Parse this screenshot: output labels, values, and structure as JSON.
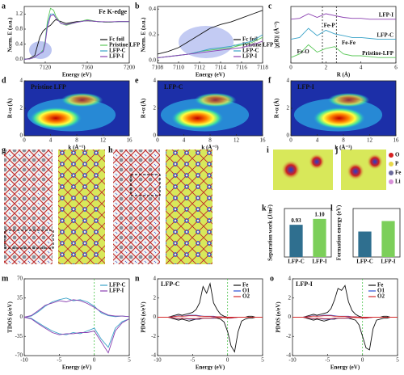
{
  "chart_data": [
    {
      "type": "line",
      "panel": "a",
      "title": "Fe K-edge",
      "title_corner": "upper right",
      "xlabel": "Energy (eV)",
      "ylabel": "Norm. E (a.u.)",
      "x": [
        7100,
        7105,
        7110,
        7112,
        7115,
        7118,
        7120,
        7122,
        7125,
        7128,
        7130,
        7135,
        7140,
        7150,
        7160,
        7170,
        7180,
        7190,
        7200
      ],
      "xlim": [
        7100,
        7200
      ],
      "xticks": [
        7120,
        7160,
        7200
      ],
      "ylim": [
        -0.1,
        1.4
      ],
      "yticks": [
        {
          "value": 0,
          "label": "0.0"
        },
        0.4,
        0.8,
        1.2
      ],
      "legend": "lower right",
      "series": [
        {
          "name": "Fc foil",
          "color": "#111111",
          "values": [
            0,
            0.02,
            0.1,
            0.3,
            0.6,
            0.75,
            0.8,
            0.85,
            0.9,
            1.0,
            1.05,
            1.0,
            0.95,
            1.0,
            1.02,
            1.0,
            0.98,
            1.0,
            1.0
          ]
        },
        {
          "name": "Pristine LFP",
          "color": "#5cc85a",
          "values": [
            0,
            0.01,
            0.05,
            0.1,
            0.15,
            0.25,
            0.5,
            1.0,
            1.35,
            1.3,
            1.15,
            0.95,
            0.9,
            0.98,
            1.05,
            1.0,
            0.98,
            1.0,
            1.0
          ]
        },
        {
          "name": "LFP-C",
          "color": "#3aa3c8",
          "values": [
            0,
            0.01,
            0.05,
            0.1,
            0.15,
            0.22,
            0.45,
            0.9,
            1.2,
            1.2,
            1.1,
            0.95,
            0.92,
            0.98,
            1.03,
            1.0,
            0.99,
            1.0,
            1.0
          ]
        },
        {
          "name": "LFP-I",
          "color": "#8a3fb0",
          "values": [
            0,
            0.01,
            0.05,
            0.1,
            0.15,
            0.2,
            0.42,
            0.85,
            1.15,
            1.18,
            1.1,
            0.95,
            0.92,
            0.98,
            1.03,
            1.0,
            0.99,
            1.0,
            1.0
          ]
        }
      ]
    },
    {
      "type": "line",
      "panel": "b",
      "xlabel": "Energy (eV)",
      "ylabel": "Norm. E (a.u.)",
      "x": [
        7108,
        7109,
        7110,
        7111,
        7112,
        7113,
        7114,
        7115,
        7116,
        7117,
        7118
      ],
      "xlim": [
        7108,
        7118
      ],
      "xticks": [
        7108,
        7110,
        7112,
        7114,
        7116,
        7118
      ],
      "ylim": [
        -0.02,
        0.42
      ],
      "yticks": [
        {
          "value": 0,
          "label": "0.0"
        },
        0.2,
        0.4
      ],
      "legend": "lower right",
      "series": [
        {
          "name": "Fc foil",
          "color": "#111111",
          "values": [
            0.05,
            0.07,
            0.1,
            0.15,
            0.2,
            0.25,
            0.28,
            0.3,
            0.33,
            0.36,
            0.39
          ]
        },
        {
          "name": "Pristine LFP",
          "color": "#5cc85a",
          "values": [
            0.02,
            0.03,
            0.04,
            0.05,
            0.07,
            0.08,
            0.09,
            0.1,
            0.12,
            0.14,
            0.18
          ]
        },
        {
          "name": "LFP-C",
          "color": "#3aa3c8",
          "values": [
            0.02,
            0.03,
            0.04,
            0.05,
            0.07,
            0.09,
            0.1,
            0.11,
            0.13,
            0.15,
            0.2
          ]
        },
        {
          "name": "LFP-I",
          "color": "#8a3fb0",
          "values": [
            0.02,
            0.03,
            0.04,
            0.05,
            0.06,
            0.07,
            0.08,
            0.09,
            0.1,
            0.12,
            0.15
          ]
        }
      ]
    },
    {
      "type": "line",
      "panel": "c",
      "xlabel": "R (Å)",
      "ylabel": "|χ(R)| (Å⁻³)",
      "x": [
        0,
        0.5,
        1,
        1.5,
        2,
        2.5,
        3,
        3.5,
        4,
        4.5,
        5,
        5.5,
        6
      ],
      "xlim": [
        0,
        6
      ],
      "xticks": [
        0,
        2,
        4,
        6
      ],
      "ylim": [
        0,
        3.1
      ],
      "legend": "inline",
      "vlines": [
        1.8,
        2.6
      ],
      "annotations": [
        {
          "text": "Fe-P",
          "x": 2.2,
          "y": 2.05
        },
        {
          "text": "Fe-O",
          "x": 0.7,
          "y": 0.6
        },
        {
          "text": "Fe-Fe",
          "x": 3.3,
          "y": 1.1
        }
      ],
      "series": [
        {
          "name": "LFP-I",
          "color": "#8a3fb0",
          "values": [
            2.4,
            2.45,
            2.7,
            2.5,
            2.7,
            2.6,
            2.5,
            2.45,
            2.45,
            2.4,
            2.4,
            2.4,
            2.4
          ]
        },
        {
          "name": "LFP-C",
          "color": "#3aa3c8",
          "values": [
            1.3,
            1.4,
            1.9,
            1.5,
            1.8,
            1.6,
            1.5,
            1.4,
            1.4,
            1.35,
            1.3,
            1.3,
            1.3
          ]
        },
        {
          "name": "Pristine-LFP",
          "color": "#5cc85a",
          "values": [
            0.3,
            0.5,
            1.0,
            0.6,
            0.8,
            0.9,
            0.5,
            0.4,
            0.4,
            0.35,
            0.3,
            0.3,
            0.3
          ]
        }
      ]
    },
    {
      "type": "bar",
      "panel": "k",
      "ylabel": "Separation work (J/m²)",
      "categories": [
        "LFP-C",
        "LFP-I"
      ],
      "values": [
        0.93,
        1.1
      ],
      "value_labels": [
        "0.93",
        "1.10"
      ],
      "colors": [
        "#2f6f8f",
        "#7ccf5a"
      ],
      "ylim": [
        0,
        1.4
      ]
    },
    {
      "type": "bar",
      "panel": "l",
      "ylabel": "Formation energy (eV)",
      "categories": [
        "LFP-C",
        "LFP-I"
      ],
      "values": [
        0.63,
        0.89
      ],
      "colors": [
        "#2f6f8f",
        "#7ccf5a"
      ],
      "ylim": [
        0,
        1.2
      ]
    },
    {
      "type": "line",
      "panel": "m",
      "xlabel": "Energy (eV)",
      "ylabel": "TDOS (e/eV)",
      "x": [
        -10,
        -9,
        -8,
        -7,
        -6,
        -5,
        -4,
        -3,
        -2,
        -1,
        0,
        1,
        2,
        3,
        4,
        5
      ],
      "xlim": [
        -10,
        5
      ],
      "xticks": [
        -10,
        -5,
        0,
        5
      ],
      "ylim": [
        -70,
        70
      ],
      "yticks": [
        -70,
        -35,
        0,
        35,
        70
      ],
      "legend": "upper right",
      "vlines": [
        0
      ],
      "series": [
        {
          "name": "LFP-C",
          "color": "#3aa3c8",
          "values": [
            0,
            2,
            10,
            20,
            28,
            32,
            35,
            30,
            32,
            28,
            20,
            8,
            3,
            1,
            2,
            1
          ],
          "values_down": [
            0,
            -2,
            -10,
            -18,
            -25,
            -30,
            -32,
            -28,
            -30,
            -25,
            -20,
            -40,
            -55,
            -20,
            -8,
            -3
          ]
        },
        {
          "name": "LFP-I",
          "color": "#8a3fb0",
          "values": [
            0,
            3,
            12,
            22,
            26,
            30,
            28,
            32,
            30,
            25,
            18,
            10,
            4,
            2,
            2,
            1
          ],
          "values_down": [
            0,
            -3,
            -12,
            -20,
            -28,
            -32,
            -30,
            -30,
            -28,
            -28,
            -25,
            -45,
            -65,
            -25,
            -10,
            -3
          ]
        }
      ]
    },
    {
      "type": "line",
      "panel": "n",
      "title": "LFP-C",
      "title_corner": "upper left",
      "xlabel": "Energy (eV)",
      "ylabel": "PDOS (e/eV)",
      "x": [
        -10,
        -9.5,
        -9,
        -8.5,
        -8,
        -7.5,
        -7,
        -6.5,
        -6,
        -5.5,
        -5,
        -4.5,
        -4,
        -3.5,
        -3,
        -2.5,
        -2,
        -1.5,
        -1,
        -0.5,
        0,
        0.5,
        1,
        1.5,
        2,
        2.5,
        3,
        3.5,
        4,
        4.5,
        5
      ],
      "xlim": [
        -10,
        5
      ],
      "xticks": [
        -10,
        -5,
        0,
        5
      ],
      "ylim": [
        -4,
        4
      ],
      "yticks": [
        -4,
        -2,
        0,
        2,
        4
      ],
      "legend": "upper right",
      "vlines": [
        0
      ],
      "series": [
        {
          "name": "Fe",
          "color": "#111111",
          "values": [
            0,
            0,
            0,
            0,
            0.1,
            0.2,
            0.3,
            0.2,
            0.3,
            0.4,
            0.5,
            0.8,
            1.5,
            3.2,
            2.5,
            3.5,
            1.5,
            0.8,
            0.3,
            0.1,
            0,
            0,
            0,
            0,
            0,
            0,
            0.1,
            0.1,
            0,
            0,
            0
          ],
          "values_down": [
            0,
            0,
            0,
            0,
            -0.1,
            -0.2,
            -0.3,
            -0.2,
            -0.3,
            -0.4,
            -0.3,
            -0.2,
            -0.2,
            -0.1,
            -0.1,
            -0.1,
            -0.1,
            -0.1,
            -0.2,
            -0.5,
            -1.5,
            -3.0,
            -3.6,
            -1.5,
            -0.4,
            -0.2,
            -0.1,
            -0.1,
            0,
            0,
            0
          ]
        },
        {
          "name": "O1",
          "color": "#2b4fd6",
          "values": [
            0,
            0,
            0,
            0,
            0.05,
            0.1,
            0.15,
            0.1,
            0.15,
            0.2,
            0.2,
            0.2,
            0.15,
            0.1,
            0.1,
            0.1,
            0.1,
            0.05,
            0.05,
            0,
            0,
            0,
            0,
            0,
            0,
            0,
            0,
            0,
            0,
            0,
            0
          ],
          "values_down": [
            0,
            0,
            0,
            0,
            -0.05,
            -0.1,
            -0.15,
            -0.1,
            -0.15,
            -0.2,
            -0.2,
            -0.2,
            -0.15,
            -0.1,
            -0.1,
            -0.1,
            -0.1,
            -0.05,
            -0.05,
            -0.05,
            -0.1,
            -0.1,
            -0.05,
            0,
            0,
            0,
            0,
            0,
            0,
            0,
            0
          ]
        },
        {
          "name": "O2",
          "color": "#d62b2b",
          "values": [
            0,
            0,
            0,
            0,
            0.03,
            0.08,
            0.12,
            0.1,
            0.12,
            0.15,
            0.15,
            0.15,
            0.1,
            0.1,
            0.08,
            0.08,
            0.05,
            0.05,
            0.03,
            0,
            0,
            0,
            0,
            0,
            0,
            0,
            0,
            0,
            0,
            0,
            0
          ],
          "values_down": [
            0,
            0,
            0,
            0,
            -0.03,
            -0.08,
            -0.12,
            -0.1,
            -0.12,
            -0.15,
            -0.15,
            -0.15,
            -0.1,
            -0.1,
            -0.08,
            -0.08,
            -0.05,
            -0.05,
            -0.03,
            -0.05,
            -0.08,
            -0.08,
            -0.03,
            0,
            0,
            0,
            0,
            0,
            0,
            0,
            0
          ]
        }
      ]
    },
    {
      "type": "line",
      "panel": "o",
      "title": "LFP-I",
      "title_corner": "upper left",
      "xlabel": "Energy (eV)",
      "ylabel": "PDOS (e/eV)",
      "x": [
        -10,
        -9.5,
        -9,
        -8.5,
        -8,
        -7.5,
        -7,
        -6.5,
        -6,
        -5.5,
        -5,
        -4.5,
        -4,
        -3.5,
        -3,
        -2.5,
        -2,
        -1.5,
        -1,
        -0.5,
        0,
        0.5,
        1,
        1.5,
        2,
        2.5,
        3,
        3.5,
        4,
        4.5,
        5
      ],
      "xlim": [
        -10,
        5
      ],
      "xticks": [
        -10,
        -5,
        0,
        5
      ],
      "ylim": [
        -4,
        4
      ],
      "yticks": [
        -4,
        -2,
        0,
        2,
        4
      ],
      "legend": "upper right",
      "vlines": [
        0
      ],
      "series": [
        {
          "name": "Fe",
          "color": "#111111",
          "values": [
            0,
            0,
            0,
            0,
            0.1,
            0.2,
            0.3,
            0.2,
            0.3,
            0.4,
            0.5,
            0.9,
            1.8,
            3.0,
            2.8,
            3.3,
            1.6,
            0.7,
            0.3,
            0.1,
            0,
            0,
            0,
            0,
            0,
            0,
            0.1,
            0.1,
            0,
            0,
            0
          ],
          "values_down": [
            0,
            0,
            0,
            0,
            -0.1,
            -0.2,
            -0.3,
            -0.2,
            -0.3,
            -0.4,
            -0.3,
            -0.2,
            -0.2,
            -0.1,
            -0.1,
            -0.1,
            -0.1,
            -0.2,
            -0.3,
            -0.8,
            -2.0,
            -3.2,
            -3.4,
            -1.2,
            -0.3,
            -0.2,
            -0.1,
            -0.1,
            0,
            0,
            0
          ]
        },
        {
          "name": "O1",
          "color": "#2b4fd6",
          "values": [
            0,
            0,
            0,
            0,
            0.05,
            0.1,
            0.15,
            0.1,
            0.15,
            0.2,
            0.2,
            0.2,
            0.15,
            0.1,
            0.1,
            0.1,
            0.1,
            0.05,
            0.05,
            0,
            0,
            0,
            0,
            0,
            0,
            0,
            0,
            0,
            0,
            0,
            0
          ],
          "values_down": [
            0,
            0,
            0,
            0,
            -0.05,
            -0.1,
            -0.15,
            -0.1,
            -0.15,
            -0.2,
            -0.2,
            -0.2,
            -0.15,
            -0.1,
            -0.1,
            -0.1,
            -0.1,
            -0.05,
            -0.05,
            -0.05,
            -0.1,
            -0.1,
            -0.05,
            0,
            0,
            0,
            0,
            0,
            0,
            0,
            0
          ]
        },
        {
          "name": "O2",
          "color": "#d62b2b",
          "values": [
            0,
            0,
            0,
            0,
            0.03,
            0.08,
            0.12,
            0.1,
            0.12,
            0.15,
            0.15,
            0.15,
            0.1,
            0.1,
            0.08,
            0.08,
            0.05,
            0.05,
            0.03,
            0,
            0,
            0,
            0,
            0,
            0,
            0,
            0,
            0,
            0,
            0,
            0
          ],
          "values_down": [
            0,
            0,
            0,
            0,
            -0.03,
            -0.08,
            -0.12,
            -0.1,
            -0.12,
            -0.15,
            -0.15,
            -0.15,
            -0.1,
            -0.1,
            -0.08,
            -0.08,
            -0.05,
            -0.05,
            -0.03,
            -0.05,
            -0.08,
            -0.08,
            -0.03,
            0,
            0,
            0,
            0,
            0,
            0,
            0,
            0
          ]
        }
      ]
    }
  ],
  "panels": {
    "d": {
      "panel": "d",
      "title": "Pristine LFP",
      "xlabel": "k (Å⁻¹)",
      "ylabel": "R+α (Å)",
      "xlim": [
        0,
        16
      ],
      "xticks": [
        0,
        4,
        8,
        12,
        16
      ],
      "ylim": [
        0,
        4
      ],
      "yticks": [
        0,
        2,
        4
      ]
    },
    "e": {
      "panel": "e",
      "title": "LFP-C",
      "xlabel": "k (Å⁻¹)",
      "ylabel": "R+α (Å)",
      "xlim": [
        0,
        16
      ],
      "xticks": [
        0,
        4,
        8,
        12,
        16
      ],
      "ylim": [
        0,
        4
      ],
      "yticks": [
        0,
        2,
        4
      ]
    },
    "f": {
      "panel": "f",
      "title": "LFP-I",
      "xlabel": "k (Å⁻¹)",
      "ylabel": "R+α (Å)",
      "xlim": [
        0,
        16
      ],
      "xticks": [
        0,
        4,
        8,
        12,
        16
      ],
      "ylim": [
        0,
        4
      ],
      "yticks": [
        0,
        2,
        4
      ]
    },
    "g": {
      "panel": "g"
    },
    "h": {
      "panel": "h"
    },
    "i": {
      "panel": "i"
    },
    "j": {
      "panel": "j",
      "legend": [
        "O",
        "P",
        "Fe",
        "Li"
      ],
      "legend_colors": [
        "#d62020",
        "#e8d84a",
        "#6a6a9a",
        "#d890d8"
      ]
    }
  }
}
